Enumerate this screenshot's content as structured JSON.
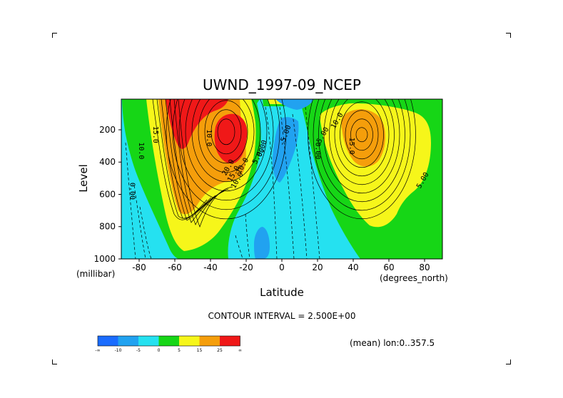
{
  "chart_data": {
    "type": "heatmap",
    "title": "UWND_1997-09_NCEP",
    "xlabel": "Latitude",
    "ylabel": "Level",
    "x_unit": "(degrees_north)",
    "y_unit": "(millibar)",
    "xlim": [
      -90,
      90
    ],
    "ylim": [
      1000,
      10
    ],
    "x_ticks": [
      -80,
      -60,
      -40,
      -20,
      0,
      20,
      40,
      60,
      80
    ],
    "x_tick_labels": [
      "-80",
      "-60",
      "-40",
      "-20",
      "0",
      "20",
      "40",
      "60",
      "80"
    ],
    "y_ticks": [
      200,
      400,
      600,
      800,
      1000
    ],
    "y_tick_labels": [
      "200",
      "400",
      "600",
      "800",
      "1000"
    ],
    "contour_interval_text": "CONTOUR INTERVAL = 2.500E+00",
    "mean_text": "(mean) lon:0..357.5",
    "colorbar": {
      "colors": [
        "#1a6cff",
        "#21a2f0",
        "#25e1f0",
        "#16d616",
        "#f6f61a",
        "#f59e0b",
        "#f01818"
      ],
      "labels": [
        "-∞",
        "-10",
        "-5",
        "0",
        "5",
        "15",
        "25",
        "∞"
      ]
    },
    "contour_labels": [
      {
        "text": "0.00",
        "lat": -85,
        "level": 580,
        "angle": 90
      },
      {
        "text": "10.0",
        "lat": -80,
        "level": 330,
        "angle": 90
      },
      {
        "text": "15.0",
        "lat": -72,
        "level": 230,
        "angle": 90
      },
      {
        "text": "10.0",
        "lat": -42,
        "level": 250,
        "angle": 90
      },
      {
        "text": "20.0",
        "lat": -29,
        "level": 440,
        "angle": -60
      },
      {
        "text": "10.0",
        "lat": -24,
        "level": 520,
        "angle": -60
      },
      {
        "text": "15.0",
        "lat": -26,
        "level": 480,
        "angle": -60
      },
      {
        "text": "10.0",
        "lat": -21,
        "level": 430,
        "angle": -60
      },
      {
        "text": "5.00",
        "lat": -12,
        "level": 370,
        "angle": -60
      },
      {
        "text": "0.00",
        "lat": -10,
        "level": 320,
        "angle": -70
      },
      {
        "text": "-5.00",
        "lat": 3,
        "level": 240,
        "angle": -70
      },
      {
        "text": "0.00",
        "lat": 19,
        "level": 330,
        "angle": 90
      },
      {
        "text": "5.00",
        "lat": 24,
        "level": 240,
        "angle": -60
      },
      {
        "text": "10.0",
        "lat": 32,
        "level": 150,
        "angle": -60
      },
      {
        "text": "15.0",
        "lat": 38,
        "level": 300,
        "angle": 90
      },
      {
        "text": "5.00",
        "lat": 80,
        "level": 520,
        "angle": -60
      }
    ],
    "jets": [
      {
        "name": "southern-hemisphere-jet",
        "lat": -32,
        "level": 230,
        "max_band": "25"
      },
      {
        "name": "northern-hemisphere-jet",
        "lat": 44,
        "level": 230,
        "max_band": "15"
      }
    ]
  }
}
